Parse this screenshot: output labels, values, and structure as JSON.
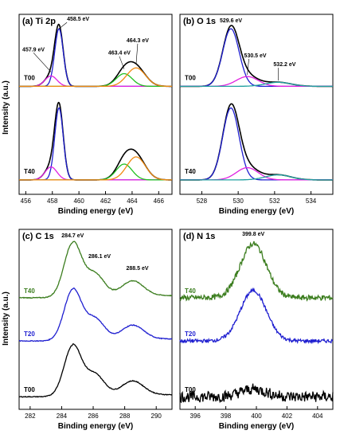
{
  "figure": {
    "ylabel": "Intensity (a.u.)"
  },
  "chart_data": [
    {
      "id": "ti2p",
      "type": "line",
      "title": "(a) Ti 2p",
      "xlabel": "Binding energy (eV)",
      "xlim": [
        455.5,
        467
      ],
      "xticks": [
        456,
        458,
        460,
        462,
        464,
        466
      ],
      "peaks": [
        [
          457.9,
          0.18,
          0.45
        ],
        [
          458.5,
          1.0,
          0.32
        ],
        [
          463.4,
          0.22,
          0.6
        ],
        [
          464.3,
          0.32,
          0.7
        ]
      ],
      "components": [
        {
          "center": 458.5,
          "amp": 1.0,
          "width": 0.32,
          "color": "#1f1fd0"
        },
        {
          "center": 457.9,
          "amp": 0.18,
          "width": 0.45,
          "color": "#e020e0"
        },
        {
          "center": 463.4,
          "amp": 0.22,
          "width": 0.6,
          "color": "#22c022"
        },
        {
          "center": 464.3,
          "amp": 0.32,
          "width": 0.7,
          "color": "#f08a10"
        }
      ],
      "series": [
        {
          "name": "T00",
          "scale": 1.0
        },
        {
          "name": "T40",
          "scale": 1.0
        }
      ],
      "annotations": [
        {
          "text": "458.5 eV",
          "x": 458.5,
          "y": 1.0
        },
        {
          "text": "457.9 eV",
          "x": 457.9,
          "y": 0.25
        },
        {
          "text": "463.4 eV",
          "x": 463.4,
          "y": 0.3
        },
        {
          "text": "464.3 eV",
          "x": 464.3,
          "y": 0.38
        }
      ]
    },
    {
      "id": "o1s",
      "type": "line",
      "title": "(b) O 1s",
      "xlabel": "Binding energy (eV)",
      "xlim": [
        526.8,
        535.2
      ],
      "xticks": [
        528,
        530,
        532,
        534
      ],
      "peaks": [
        [
          529.6,
          1.0,
          0.45
        ],
        [
          530.5,
          0.17,
          0.6
        ],
        [
          532.2,
          0.07,
          0.7
        ]
      ],
      "components": [
        {
          "center": 529.6,
          "amp": 1.0,
          "width": 0.45,
          "color": "#1f1fd0"
        },
        {
          "center": 530.5,
          "amp": 0.17,
          "width": 0.6,
          "color": "#e020e0"
        },
        {
          "center": 532.2,
          "amp": 0.07,
          "width": 0.7,
          "color": "#20a0a0"
        }
      ],
      "series": [
        {
          "name": "T00",
          "scale": 1.0
        },
        {
          "name": "T40",
          "scale": 1.0
        }
      ],
      "annotations": [
        {
          "text": "529.6 eV",
          "x": 529.6,
          "y": 1.0
        },
        {
          "text": "530.5 eV",
          "x": 530.5,
          "y": 0.2
        },
        {
          "text": "532.2 eV",
          "x": 532.2,
          "y": 0.1
        }
      ]
    },
    {
      "id": "c1s",
      "type": "line",
      "title": "(c) C 1s",
      "xlabel": "Binding energy (eV)",
      "xlim": [
        281.3,
        291
      ],
      "xticks": [
        282,
        284,
        286,
        288,
        290
      ],
      "peaks": [
        [
          284.7,
          1.0,
          0.55
        ],
        [
          286.1,
          0.42,
          0.6
        ],
        [
          288.5,
          0.28,
          0.7
        ]
      ],
      "series": [
        {
          "name": "T40",
          "color": "#3b7d1e",
          "label_color": "#3b7d1e"
        },
        {
          "name": "T20",
          "color": "#1f1fd0",
          "label_color": "#1f1fd0"
        },
        {
          "name": "T00",
          "color": "#000000",
          "label_color": "#000000"
        }
      ],
      "annotations": [
        {
          "text": "284.7 eV",
          "x": 284.7,
          "y": 1.0
        },
        {
          "text": "286.1 eV",
          "x": 286.1,
          "y": 0.65
        },
        {
          "text": "288.5 eV",
          "x": 288.5,
          "y": 0.4
        }
      ]
    },
    {
      "id": "n1s",
      "type": "line",
      "title": "(d) N 1s",
      "xlabel": "Binding energy (eV)",
      "xlim": [
        395,
        405
      ],
      "xticks": [
        396,
        398,
        400,
        402,
        404
      ],
      "peaks": [
        [
          399.8,
          1.0,
          0.85
        ]
      ],
      "series": [
        {
          "name": "T40",
          "color": "#3b7d1e",
          "label_color": "#3b7d1e"
        },
        {
          "name": "T20",
          "color": "#1f1fd0",
          "label_color": "#1f1fd0"
        },
        {
          "name": "T00",
          "color": "#000000",
          "label_color": "#000000"
        }
      ],
      "annotations": [
        {
          "text": "399.8 eV",
          "x": 399.8,
          "y": 1.0
        }
      ]
    }
  ]
}
